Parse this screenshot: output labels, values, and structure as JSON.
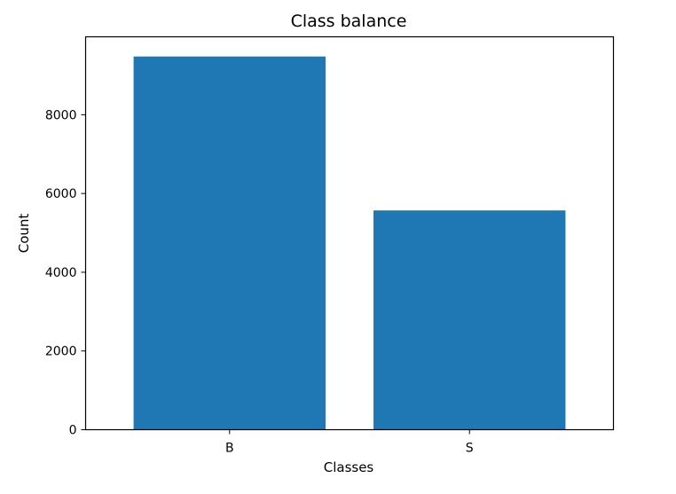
{
  "chart_data": {
    "type": "bar",
    "title": "Class balance",
    "xlabel": "Classes",
    "ylabel": "Count",
    "categories": [
      "B",
      "S"
    ],
    "values": [
      9480,
      5570
    ],
    "ylim": [
      0,
      9980
    ],
    "yticks": [
      0,
      2000,
      4000,
      6000,
      8000
    ],
    "ytick_labels": [
      "0",
      "2000",
      "4000",
      "6000",
      "8000"
    ],
    "bar_color": "#1f77b4",
    "grid": false,
    "legend": "none"
  }
}
